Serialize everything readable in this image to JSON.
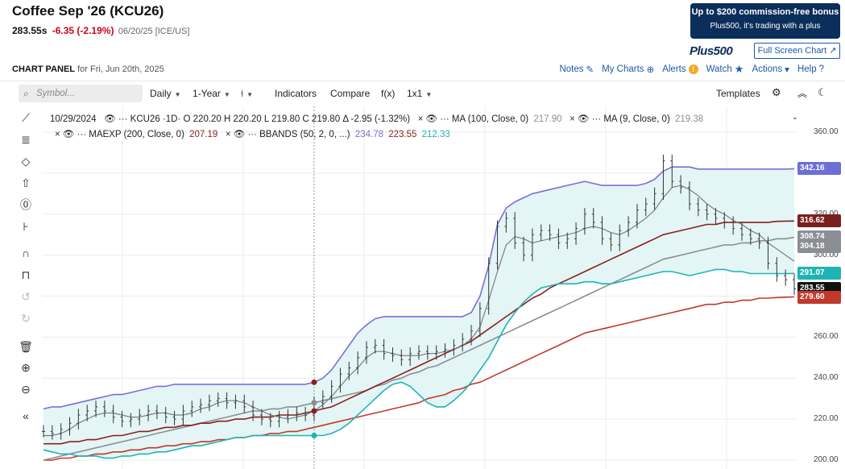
{
  "header": {
    "title": "Coffee Sep '26 (KCU26)",
    "last": "283.55s",
    "change": "-6.35 (-2.19%)",
    "meta": "06/20/25 [ICE/US]"
  },
  "promo": {
    "line1": "Up to $200 commission-free bonus",
    "line2": "Plus500, it's trading with a plus",
    "brand": "Plus500"
  },
  "fullscreen_label": "Full Screen Chart",
  "panel": {
    "title": "CHART PANEL",
    "date": "for Fri, Jun 20th, 2025"
  },
  "links": {
    "notes": "Notes",
    "mycharts": "My Charts",
    "alerts": "Alerts",
    "watch": "Watch",
    "actions": "Actions",
    "help": "Help"
  },
  "toolbar": {
    "search_placeholder": "Symbol...",
    "period": "Daily",
    "range": "1-Year",
    "indicators": "Indicators",
    "compare": "Compare",
    "fx": "f(x)",
    "layout": "1x1",
    "templates": "Templates"
  },
  "legend": {
    "row1": {
      "date": "10/29/2024",
      "symbol": "KCU26 ·1D·",
      "ohlc": "O 220.20  H 220.20  L 219.80  C 219.80",
      "delta": "Δ -2.95 (-1.32%)",
      "ma100": "MA (100, Close, 0)",
      "ma100_val": "217.90",
      "ma9": "MA (9, Close, 0)",
      "ma9_val": "219.38"
    },
    "row2": {
      "maexp": "MAEXP (200, Close, 0)",
      "maexp_val": "207.19",
      "bbands": "BBANDS (50, 2, 0, ...)",
      "bb_upper": "234.78",
      "bb_mid": "223.55",
      "bb_lower": "212.33"
    }
  },
  "axis": {
    "ticks": [
      "360.00",
      "340.00",
      "320.00",
      "300.00",
      "280.00",
      "260.00",
      "240.00",
      "220.00",
      "200.00"
    ],
    "tags": [
      {
        "label": "342.16",
        "value": 342.16,
        "color": "#6b6fd6"
      },
      {
        "label": "316.62",
        "value": 316.62,
        "color": "#7a1f1f"
      },
      {
        "label": "308.74",
        "value": 308.74,
        "color": "#8a8f93"
      },
      {
        "label": "304.18",
        "value": 304.18,
        "color": "#8a8f93"
      },
      {
        "label": "291.07",
        "value": 291.07,
        "color": "#1fb4b4"
      },
      {
        "label": "283.55",
        "value": 283.55,
        "color": "#111111"
      },
      {
        "label": "279.60",
        "value": 279.6,
        "color": "#c0392b"
      }
    ]
  },
  "colors": {
    "bb_upper": "#7a6fd6",
    "bb_lower": "#1fb4b4",
    "bb_fill": "#e3f5f4",
    "ma100": "#8a8f93",
    "ma9": "#7a7f83",
    "maexp": "#8b1e1e",
    "price": "#333333",
    "red_line": "#c0392b"
  },
  "chart_data": {
    "type": "line",
    "ylim": [
      200,
      360
    ],
    "series": [
      {
        "name": "KCU26",
        "values": [
          214,
          213,
          215,
          218,
          222,
          224,
          226,
          224,
          221,
          219,
          220,
          222,
          224,
          223,
          221,
          220,
          224,
          226,
          227,
          229,
          230,
          228,
          229,
          226,
          222,
          220,
          219,
          221,
          222,
          223,
          222,
          228,
          231,
          236,
          242,
          245,
          250,
          255,
          256,
          252,
          251,
          249,
          252,
          253,
          252,
          253,
          254,
          256,
          259,
          263,
          274,
          296,
          314,
          318,
          306,
          300,
          310,
          312,
          310,
          306,
          308,
          313,
          320,
          316,
          308,
          305,
          312,
          316,
          322,
          325,
          330,
          346,
          336,
          333,
          325,
          322,
          320,
          318,
          316,
          313,
          310,
          308,
          306,
          296,
          290,
          288,
          283.55
        ]
      },
      {
        "name": "MA (9, Close, 0)",
        "values": [
          212,
          212,
          213,
          215,
          218,
          220,
          222,
          223,
          223,
          222,
          221,
          221,
          222,
          223,
          223,
          222,
          222,
          223,
          225,
          226,
          228,
          229,
          229,
          228,
          226,
          224,
          222,
          221,
          220,
          221,
          222,
          224,
          227,
          231,
          236,
          241,
          245,
          250,
          253,
          253,
          252,
          251,
          251,
          251,
          252,
          252,
          253,
          254,
          256,
          259,
          265,
          278,
          292,
          305,
          309,
          308,
          306,
          307,
          308,
          309,
          310,
          311,
          313,
          314,
          313,
          311,
          310,
          312,
          315,
          318,
          322,
          328,
          333,
          334,
          332,
          329,
          325,
          322,
          320,
          317,
          315,
          312,
          310,
          306,
          303,
          300,
          297
        ]
      },
      {
        "name": "MA (100, Close, 0)",
        "values": [
          200,
          201,
          202,
          203,
          204,
          205,
          206,
          207,
          208,
          209,
          210,
          211,
          212,
          213,
          214,
          215,
          216,
          217,
          218,
          219,
          220,
          221,
          222,
          223,
          224,
          224,
          225,
          225,
          226,
          226,
          227,
          228,
          229,
          230,
          231,
          232,
          233,
          234,
          236,
          237,
          239,
          240,
          242,
          243,
          245,
          246,
          248,
          250,
          252,
          254,
          256,
          258,
          260,
          262,
          264,
          266,
          268,
          270,
          272,
          274,
          276,
          278,
          280,
          282,
          284,
          286,
          288,
          290,
          292,
          294,
          296,
          298,
          299,
          300,
          301,
          302,
          303,
          304,
          305,
          305,
          306,
          306,
          307,
          307,
          308,
          308,
          308.74
        ]
      },
      {
        "name": "MAEXP (200, Close, 0)",
        "values": [
          208,
          208,
          208,
          209,
          209,
          210,
          210,
          211,
          212,
          212,
          213,
          214,
          214,
          215,
          216,
          216,
          217,
          217,
          218,
          218,
          219,
          219,
          220,
          220,
          221,
          221,
          221,
          222,
          222,
          222,
          223,
          224,
          225,
          226,
          228,
          230,
          232,
          234,
          236,
          238,
          240,
          242,
          244,
          246,
          248,
          250,
          252,
          254,
          256,
          258,
          261,
          264,
          267,
          270,
          273,
          276,
          279,
          281,
          284,
          286,
          288,
          290,
          292,
          294,
          296,
          298,
          300,
          302,
          304,
          306,
          308,
          310,
          311,
          312,
          313,
          314,
          315,
          315,
          316,
          316,
          316,
          316,
          316,
          316,
          316.5,
          316.6,
          316.62
        ]
      },
      {
        "name": "BBANDS upper",
        "values": [
          225,
          226,
          226,
          227,
          228,
          229,
          230,
          231,
          232,
          232,
          233,
          234,
          235,
          236,
          236,
          237,
          237,
          237,
          237,
          237,
          237,
          237,
          237,
          237,
          237,
          237,
          237,
          237,
          237,
          237,
          237,
          238,
          240,
          244,
          250,
          256,
          262,
          266,
          269,
          270,
          270,
          270,
          270,
          270,
          270,
          270,
          270,
          270,
          270,
          272,
          280,
          295,
          315,
          323,
          326,
          328,
          330,
          331,
          332,
          333,
          334,
          335,
          336,
          335,
          334,
          334,
          334,
          334,
          334,
          335,
          337,
          341,
          343,
          343,
          343,
          342,
          342,
          342,
          342,
          342,
          342,
          342,
          342,
          342,
          342,
          342,
          342.16
        ]
      },
      {
        "name": "BBANDS lower",
        "values": [
          205,
          204,
          203,
          203,
          202,
          202,
          202,
          201,
          201,
          202,
          202,
          203,
          203,
          204,
          204,
          205,
          206,
          207,
          207,
          208,
          209,
          210,
          211,
          211,
          212,
          212,
          212,
          212,
          212,
          212,
          212,
          212,
          212,
          213,
          215,
          218,
          222,
          226,
          230,
          234,
          237,
          238,
          236,
          232,
          228,
          226,
          226,
          229,
          233,
          238,
          244,
          250,
          258,
          266,
          272,
          277,
          281,
          284,
          285,
          286,
          286,
          286,
          287,
          287,
          286,
          286,
          287,
          288,
          289,
          290,
          291,
          292,
          292,
          291,
          290,
          291,
          292,
          293,
          293,
          292,
          292,
          291,
          291,
          291,
          291,
          291,
          291.07
        ]
      },
      {
        "name": "trend",
        "values": [
          200,
          200,
          201,
          201,
          202,
          202,
          203,
          203,
          204,
          204,
          205,
          205,
          206,
          206,
          207,
          207,
          208,
          208,
          209,
          209,
          210,
          210,
          211,
          211,
          212,
          212,
          213,
          213,
          214,
          214,
          215,
          216,
          217,
          218,
          219,
          220,
          221,
          222,
          223,
          224,
          225,
          226,
          227,
          228,
          230,
          231,
          232,
          234,
          235,
          237,
          238,
          240,
          242,
          244,
          246,
          248,
          250,
          252,
          254,
          256,
          258,
          260,
          262,
          263,
          264,
          265,
          266,
          267,
          268,
          269,
          270,
          271,
          272,
          273,
          274,
          275,
          276,
          276,
          277,
          277,
          278,
          278,
          279,
          279,
          279.3,
          279.5,
          279.6
        ]
      }
    ]
  }
}
